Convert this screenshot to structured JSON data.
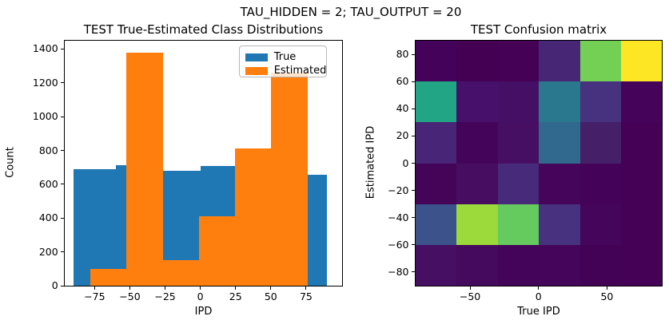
{
  "figure": {
    "suptitle": "TAU_HIDDEN = 2; TAU_OUTPUT = 20",
    "background": "#ffffff",
    "text_color": "#000000"
  },
  "chart_data": [
    {
      "type": "bar",
      "variant": "overlaid-histograms",
      "title": "TEST True-Estimated Class Distributions",
      "xlabel": "IPD",
      "ylabel": "Count",
      "xlim": [
        -96.4,
        100.4
      ],
      "ylim": [
        0,
        1449
      ],
      "xticks": [
        -75,
        -50,
        -25,
        0,
        25,
        50,
        75
      ],
      "yticks": [
        0,
        200,
        400,
        600,
        800,
        1000,
        1200,
        1400
      ],
      "grid": false,
      "legend": {
        "position": "upper right",
        "entries": [
          {
            "label": "True",
            "color": "#1f77b4"
          },
          {
            "label": "Estimated",
            "color": "#ff7f0e"
          }
        ]
      },
      "series": [
        {
          "name": "True",
          "color": "#1f77b4",
          "bin_edges": [
            -90,
            -60,
            -30,
            0,
            30,
            60,
            90
          ],
          "counts": [
            690,
            715,
            680,
            710,
            700,
            655
          ]
        },
        {
          "name": "Estimated",
          "color": "#ff7f0e",
          "bin_edges": [
            -78,
            -52.33,
            -26.67,
            -1,
            24.67,
            50.33,
            76
          ],
          "counts": [
            100,
            1380,
            150,
            410,
            810,
            1260
          ]
        }
      ]
    },
    {
      "type": "heatmap",
      "title": "TEST Confusion matrix",
      "xlabel": "True IPD",
      "ylabel": "Estimated IPD",
      "xlim": [
        -90,
        90
      ],
      "ylim": [
        -90,
        90
      ],
      "xticks": [
        -50,
        0,
        50
      ],
      "yticks": [
        80,
        60,
        40,
        20,
        0,
        -20,
        -40,
        -60,
        -80
      ],
      "colormap": "viridis",
      "col_bins_true_ipd": [
        "-90..-60",
        "-60..-30",
        "-30..0",
        "0..30",
        "30..60",
        "60..90"
      ],
      "row_bins_estimated_ipd_top_to_bottom": [
        "60..90",
        "30..60",
        "0..30",
        "-30..0",
        "-60..-30",
        "-90..-60"
      ],
      "values": [
        [
          8,
          2,
          3,
          65,
          505,
          650
        ],
        [
          390,
          40,
          35,
          260,
          91,
          10
        ],
        [
          65,
          8,
          39,
          240,
          58,
          2
        ],
        [
          10,
          30,
          95,
          8,
          5,
          2
        ],
        [
          169,
          546,
          481,
          91,
          8,
          2
        ],
        [
          40,
          25,
          15,
          10,
          5,
          2
        ]
      ],
      "cell_colors": [
        [
          "#45025a",
          "#440154",
          "#440156",
          "#472676",
          "#74d055",
          "#fde725"
        ],
        [
          "#21a585",
          "#47106a",
          "#460f66",
          "#2a788e",
          "#46327e",
          "#450459"
        ],
        [
          "#482576",
          "#440459",
          "#470f63",
          "#31688e",
          "#452069",
          "#440155"
        ],
        [
          "#440458",
          "#460d60",
          "#472a7a",
          "#45055b",
          "#440358",
          "#440155"
        ],
        [
          "#3b528b",
          "#9cd93b",
          "#65cb5e",
          "#46327e",
          "#45055b",
          "#440155"
        ],
        [
          "#470f63",
          "#45095e",
          "#44045a",
          "#44055b",
          "#440257",
          "#440155"
        ]
      ]
    }
  ]
}
